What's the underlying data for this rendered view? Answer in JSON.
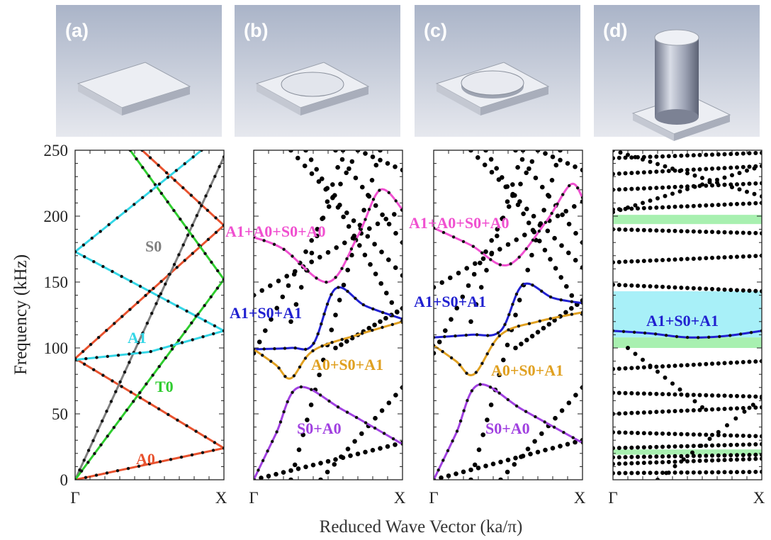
{
  "figure": {
    "ylabel": "Frequency (kHz)",
    "xlabel": "Reduced Wave Vector (ka/π)",
    "yticks": [
      "0",
      "50",
      "100",
      "150",
      "200",
      "250"
    ],
    "xtick_left": "Γ",
    "xtick_right": "X",
    "colors": {
      "A0": "#e8522e",
      "S0": "#7f7f7f",
      "T0": "#2ecc2e",
      "A1": "#33d6e6",
      "magenta": "#f050d0",
      "blue": "#2020d0",
      "gold": "#e0a020",
      "violet": "#a040e0",
      "gap_green": "#a8f0b0",
      "gap_cyan": "#a8f0f8"
    }
  },
  "panels": [
    {
      "label": "(a)",
      "shape": "plate"
    },
    {
      "label": "(b)",
      "shape": "plate-thin-disc"
    },
    {
      "label": "(c)",
      "shape": "plate-disc"
    },
    {
      "label": "(d)",
      "shape": "plate-cylinder"
    }
  ],
  "chart_data": [
    {
      "type": "line",
      "panel": "(a)",
      "xlabel": "Reduced Wave Vector (ka/π)",
      "ylabel": "Frequency (kHz)",
      "xlim": [
        0,
        1
      ],
      "ylim": [
        0,
        250
      ],
      "series": [
        {
          "name": "A0",
          "color": "#e8522e",
          "x": [
            0,
            0.25,
            0.5,
            0.75,
            1
          ],
          "y": [
            0,
            6,
            12,
            18,
            24
          ],
          "markers": true
        },
        {
          "name": "",
          "color": "#e8522e",
          "x": [
            0,
            1
          ],
          "y": [
            92,
            24
          ],
          "markers": true
        },
        {
          "name": "",
          "color": "#e8522e",
          "x": [
            0,
            1
          ],
          "y": [
            92,
            193
          ],
          "markers": true
        },
        {
          "name": "",
          "color": "#e8522e",
          "x": [
            0.45,
            1
          ],
          "y": [
            250,
            193
          ],
          "markers": true
        },
        {
          "name": "S0",
          "color": "#7f7f7f",
          "x": [
            0,
            1
          ],
          "y": [
            0,
            245
          ],
          "markers": true
        },
        {
          "name": "T0",
          "color": "#2ecc2e",
          "x": [
            0,
            1
          ],
          "y": [
            0,
            152
          ],
          "markers": false
        },
        {
          "name": "",
          "color": "#2ecc2e",
          "x": [
            0.37,
            1
          ],
          "y": [
            250,
            152
          ],
          "markers": false
        },
        {
          "name": "A1",
          "color": "#33d6e6",
          "x": [
            0,
            0.5,
            1
          ],
          "y": [
            91,
            97,
            113
          ],
          "markers": true
        },
        {
          "name": "",
          "color": "#33d6e6",
          "x": [
            0,
            1
          ],
          "y": [
            173,
            113
          ],
          "markers": true
        },
        {
          "name": "",
          "color": "#33d6e6",
          "x": [
            0,
            0.85
          ],
          "y": [
            173,
            250
          ],
          "markers": true
        }
      ],
      "annotations": [
        "S0",
        "A1",
        "T0",
        "A0"
      ]
    },
    {
      "type": "scatter",
      "panel": "(b)",
      "xlim": [
        0,
        1
      ],
      "ylim": [
        0,
        250
      ],
      "series": [
        {
          "name": "A1+A0+S0+A0",
          "color": "#f050d0",
          "x": [
            0,
            0.2,
            0.5,
            0.7,
            0.85,
            1
          ],
          "y": [
            184,
            175,
            150,
            185,
            220,
            205
          ]
        },
        {
          "name": "A1+S0+A1",
          "color": "#2020d0",
          "x": [
            0,
            0.25,
            0.4,
            0.55,
            0.75,
            1
          ],
          "y": [
            99,
            100,
            103,
            145,
            132,
            122
          ]
        },
        {
          "name": "A0+S0+A1",
          "color": "#e0a020",
          "x": [
            0,
            0.15,
            0.25,
            0.4,
            0.7,
            1
          ],
          "y": [
            99,
            87,
            77,
            98,
            110,
            120
          ]
        },
        {
          "name": "S0+A0",
          "color": "#a040e0",
          "x": [
            0,
            0.15,
            0.3,
            0.6,
            1
          ],
          "y": [
            0,
            35,
            70,
            53,
            27
          ]
        }
      ]
    },
    {
      "type": "scatter",
      "panel": "(c)",
      "xlim": [
        0,
        1
      ],
      "ylim": [
        0,
        250
      ],
      "series": [
        {
          "name": "A1+A0+S0+A0",
          "color": "#f050d0",
          "x": [
            0,
            0.25,
            0.5,
            0.75,
            0.92,
            1
          ],
          "y": [
            191,
            178,
            163,
            195,
            224,
            214
          ]
        },
        {
          "name": "A1+S0+A1",
          "color": "#2020d0",
          "x": [
            0,
            0.25,
            0.45,
            0.6,
            0.8,
            1
          ],
          "y": [
            108,
            110,
            113,
            148,
            138,
            134
          ]
        },
        {
          "name": "A0+S0+A1",
          "color": "#e0a020",
          "x": [
            0,
            0.15,
            0.27,
            0.45,
            0.7,
            1
          ],
          "y": [
            102,
            90,
            80,
            110,
            120,
            127
          ]
        },
        {
          "name": "S0+A0",
          "color": "#a040e0",
          "x": [
            0,
            0.15,
            0.3,
            0.6,
            1
          ],
          "y": [
            0,
            35,
            72,
            53,
            28
          ]
        }
      ]
    },
    {
      "type": "scatter",
      "panel": "(d)",
      "xlim": [
        0,
        1
      ],
      "ylim": [
        0,
        250
      ],
      "series": [
        {
          "name": "A1+S0+A1",
          "color": "#2020d0",
          "x": [
            0,
            0.25,
            0.5,
            0.75,
            1
          ],
          "y": [
            113,
            111,
            108,
            109,
            113
          ]
        }
      ],
      "band_gaps": [
        {
          "from": 194,
          "to": 201,
          "color": "#a8f0b0"
        },
        {
          "from": 108,
          "to": 143,
          "color": "#a8f0f8"
        },
        {
          "from": 100,
          "to": 108,
          "color": "#a8f0b0"
        },
        {
          "from": 19,
          "to": 23,
          "color": "#a8f0b0"
        }
      ]
    }
  ]
}
